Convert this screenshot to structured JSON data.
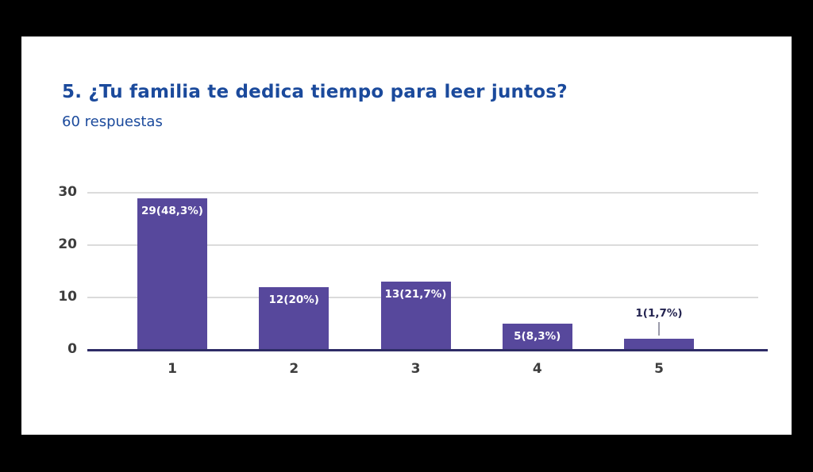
{
  "page": {
    "background_color": "#000000",
    "card_color": "#ffffff"
  },
  "header": {
    "title": "5. ¿Tu familia te dedica tiempo para leer juntos?",
    "subtitle": "60 respuestas",
    "text_color": "#1b4a9c"
  },
  "chart_data": {
    "type": "bar",
    "title": "5. ¿Tu familia te dedica tiempo para leer juntos?",
    "subtitle": "60 respuestas",
    "categories": [
      "1",
      "2",
      "3",
      "4",
      "5"
    ],
    "values": [
      29,
      12,
      13,
      5,
      1
    ],
    "total_responses": 60,
    "bar_labels": [
      "29(48,3%)",
      "12(20%)",
      "13(21,7%)",
      "5(8,3%)",
      "1(1,7%)"
    ],
    "bar_label_placement": [
      "inside",
      "inside",
      "inside",
      "inside",
      "callout"
    ],
    "xlabel": "",
    "ylabel": "",
    "ylim": [
      0,
      30
    ],
    "yticks": [
      0,
      10,
      20,
      30
    ],
    "ytick_labels": [
      "0",
      "10",
      "20",
      "30"
    ],
    "grid": true,
    "legend": "none",
    "colors": {
      "bar": "#57489c",
      "bar_label": "#ffffff",
      "callout_label": "#232350",
      "callout_line": "#9b9bab",
      "axis_text": "#3d3d3d",
      "gridline": "#dbdbdb",
      "baseline": "#2e2c66"
    }
  }
}
